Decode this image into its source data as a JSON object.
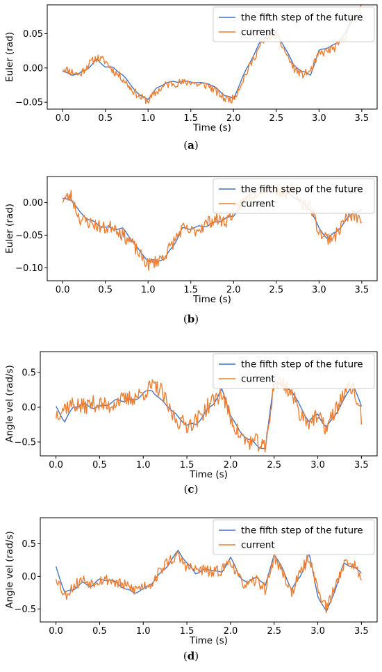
{
  "colors": {
    "predicted": "#4472c4",
    "current": "#ed7d31"
  },
  "chart_data": [
    {
      "type": "line",
      "caption_letter": "a",
      "xlabel": "Time (s)",
      "ylabel": "Euler (rad)",
      "xlim": [
        -0.18,
        3.68
      ],
      "ylim": [
        -0.06,
        0.092
      ],
      "xticks": [
        0.0,
        0.5,
        1.0,
        1.5,
        2.0,
        2.5,
        3.0,
        3.5
      ],
      "xtick_labels": [
        "0.0",
        "0.5",
        "1.0",
        "1.5",
        "2.0",
        "2.5",
        "3.0",
        "3.5"
      ],
      "yticks": [
        -0.05,
        0.0,
        0.05
      ],
      "ytick_labels": [
        "−0.05",
        "0.00",
        "0.05"
      ],
      "legend_position": "top-right",
      "noise": 0.006,
      "seed": 11,
      "series": [
        {
          "name": "the fifth step of the future",
          "x": [
            0.0,
            0.1,
            0.2,
            0.3,
            0.4,
            0.5,
            0.6,
            0.7,
            0.8,
            0.9,
            1.0,
            1.1,
            1.2,
            1.3,
            1.4,
            1.5,
            1.6,
            1.7,
            1.8,
            1.9,
            2.0,
            2.1,
            2.2,
            2.3,
            2.4,
            2.5,
            2.6,
            2.7,
            2.8,
            2.9,
            3.0,
            3.1,
            3.2,
            3.3,
            3.4,
            3.5
          ],
          "y": [
            -0.005,
            -0.01,
            -0.008,
            0.0,
            0.012,
            0.002,
            0.0,
            -0.01,
            -0.025,
            -0.04,
            -0.045,
            -0.03,
            -0.022,
            -0.02,
            -0.02,
            -0.02,
            -0.022,
            -0.022,
            -0.03,
            -0.04,
            -0.045,
            -0.015,
            0.01,
            0.035,
            0.05,
            0.052,
            0.03,
            0.005,
            -0.005,
            -0.01,
            0.025,
            0.03,
            0.035,
            0.05,
            0.07,
            0.08
          ]
        },
        {
          "name": "current",
          "x": [
            0.0,
            0.1,
            0.2,
            0.3,
            0.4,
            0.5,
            0.6,
            0.7,
            0.8,
            0.9,
            1.0,
            1.1,
            1.2,
            1.3,
            1.4,
            1.5,
            1.6,
            1.7,
            1.8,
            1.9,
            2.0,
            2.1,
            2.2,
            2.3,
            2.4,
            2.5,
            2.6,
            2.7,
            2.8,
            2.9,
            3.0,
            3.1,
            3.2,
            3.3,
            3.4,
            3.5
          ],
          "y": [
            0.0,
            -0.005,
            -0.01,
            0.005,
            0.015,
            0.01,
            -0.005,
            -0.015,
            -0.03,
            -0.042,
            -0.048,
            -0.035,
            -0.025,
            -0.022,
            -0.022,
            -0.02,
            -0.025,
            -0.025,
            -0.035,
            -0.045,
            -0.045,
            -0.02,
            0.005,
            0.03,
            0.045,
            0.048,
            0.025,
            0.0,
            -0.01,
            -0.005,
            0.02,
            0.025,
            0.03,
            0.045,
            0.075,
            0.09
          ]
        }
      ]
    },
    {
      "type": "line",
      "caption_letter": "b",
      "xlabel": "Time (s)",
      "ylabel": "Euler (rad)",
      "xlim": [
        -0.18,
        3.68
      ],
      "ylim": [
        -0.12,
        0.04
      ],
      "xticks": [
        0.0,
        0.5,
        1.0,
        1.5,
        2.0,
        2.5,
        3.0,
        3.5
      ],
      "xtick_labels": [
        "0.0",
        "0.5",
        "1.0",
        "1.5",
        "2.0",
        "2.5",
        "3.0",
        "3.5"
      ],
      "yticks": [
        -0.1,
        -0.05,
        0.0
      ],
      "ytick_labels": [
        "−0.10",
        "−0.05",
        "0.00"
      ],
      "legend_position": "top-right",
      "noise": 0.01,
      "seed": 23,
      "series": [
        {
          "name": "the fifth step of the future",
          "x": [
            0.0,
            0.1,
            0.2,
            0.3,
            0.4,
            0.5,
            0.6,
            0.7,
            0.8,
            0.9,
            1.0,
            1.1,
            1.2,
            1.3,
            1.4,
            1.5,
            1.6,
            1.7,
            1.8,
            1.9,
            2.0,
            2.1,
            2.2,
            2.3,
            2.4,
            2.5,
            2.6,
            2.7,
            2.8,
            2.9,
            3.0,
            3.1,
            3.2,
            3.3,
            3.4,
            3.5
          ],
          "y": [
            0.005,
            0.005,
            -0.015,
            -0.025,
            -0.033,
            -0.038,
            -0.04,
            -0.04,
            -0.055,
            -0.075,
            -0.088,
            -0.09,
            -0.085,
            -0.065,
            -0.04,
            -0.04,
            -0.037,
            -0.035,
            -0.03,
            -0.025,
            -0.02,
            0.0,
            0.015,
            0.02,
            0.02,
            0.018,
            0.015,
            0.01,
            0.0,
            -0.01,
            -0.04,
            -0.055,
            -0.045,
            -0.03,
            -0.015,
            -0.012
          ]
        },
        {
          "name": "current",
          "x": [
            0.0,
            0.1,
            0.2,
            0.3,
            0.4,
            0.5,
            0.6,
            0.7,
            0.8,
            0.9,
            1.0,
            1.1,
            1.2,
            1.3,
            1.4,
            1.5,
            1.6,
            1.7,
            1.8,
            1.9,
            2.0,
            2.1,
            2.2,
            2.3,
            2.4,
            2.5,
            2.6,
            2.7,
            2.8,
            2.9,
            3.0,
            3.1,
            3.2,
            3.3,
            3.4,
            3.5
          ],
          "y": [
            0.005,
            0.01,
            -0.025,
            -0.03,
            -0.035,
            -0.04,
            -0.035,
            -0.05,
            -0.06,
            -0.08,
            -0.095,
            -0.09,
            -0.08,
            -0.06,
            -0.04,
            -0.045,
            -0.04,
            -0.03,
            -0.025,
            -0.03,
            -0.015,
            0.0,
            0.01,
            0.02,
            0.025,
            0.02,
            0.015,
            0.02,
            0.0,
            -0.005,
            -0.045,
            -0.055,
            -0.05,
            -0.025,
            -0.02,
            -0.025
          ]
        }
      ]
    },
    {
      "type": "line",
      "caption_letter": "c",
      "xlabel": "Time (s)",
      "ylabel": "Angle vel (rad/s)",
      "xlim": [
        -0.18,
        3.68
      ],
      "ylim": [
        -0.7,
        0.8
      ],
      "xticks": [
        0.0,
        0.5,
        1.0,
        1.5,
        2.0,
        2.5,
        3.0,
        3.5
      ],
      "xtick_labels": [
        "0.0",
        "0.5",
        "1.0",
        "1.5",
        "2.0",
        "2.5",
        "3.0",
        "3.5"
      ],
      "yticks": [
        -0.5,
        0.0,
        0.5
      ],
      "ytick_labels": [
        "−0.5",
        "0.0",
        "0.5"
      ],
      "legend_position": "top-right",
      "noise": 0.12,
      "seed": 37,
      "series": [
        {
          "name": "the fifth step of the future",
          "x": [
            0.0,
            0.1,
            0.2,
            0.3,
            0.4,
            0.5,
            0.6,
            0.7,
            0.8,
            0.9,
            1.0,
            1.1,
            1.2,
            1.3,
            1.4,
            1.5,
            1.6,
            1.7,
            1.8,
            1.9,
            2.0,
            2.1,
            2.2,
            2.3,
            2.4,
            2.5,
            2.6,
            2.7,
            2.8,
            2.9,
            3.0,
            3.1,
            3.2,
            3.3,
            3.4,
            3.5
          ],
          "y": [
            0.0,
            -0.2,
            0.0,
            0.05,
            0.0,
            0.0,
            0.05,
            0.1,
            0.1,
            0.1,
            0.2,
            0.25,
            0.1,
            0.0,
            -0.15,
            -0.25,
            -0.25,
            -0.1,
            0.05,
            0.25,
            -0.1,
            -0.35,
            -0.45,
            -0.55,
            -0.6,
            0.4,
            0.3,
            0.25,
            0.0,
            -0.2,
            -0.1,
            -0.3,
            -0.1,
            0.1,
            0.35,
            0.0
          ]
        },
        {
          "name": "current",
          "x": [
            0.0,
            0.1,
            0.2,
            0.3,
            0.4,
            0.5,
            0.6,
            0.7,
            0.8,
            0.9,
            1.0,
            1.1,
            1.2,
            1.3,
            1.4,
            1.5,
            1.6,
            1.7,
            1.8,
            1.9,
            2.0,
            2.1,
            2.2,
            2.3,
            2.4,
            2.5,
            2.6,
            2.7,
            2.8,
            2.9,
            3.0,
            3.1,
            3.2,
            3.3,
            3.4,
            3.5
          ],
          "y": [
            -0.1,
            0.0,
            0.05,
            0.0,
            0.05,
            0.05,
            0.0,
            0.1,
            0.1,
            0.15,
            0.2,
            0.3,
            0.25,
            -0.05,
            -0.2,
            -0.25,
            -0.2,
            -0.05,
            0.1,
            0.2,
            -0.15,
            -0.4,
            -0.5,
            -0.5,
            -0.6,
            0.35,
            0.35,
            0.2,
            -0.1,
            -0.2,
            -0.15,
            -0.3,
            -0.05,
            0.2,
            0.3,
            -0.15
          ]
        }
      ]
    },
    {
      "type": "line",
      "caption_letter": "d",
      "xlabel": "Time (s)",
      "ylabel": "Angle vel (rad/s)",
      "xlim": [
        -0.18,
        3.68
      ],
      "ylim": [
        -0.7,
        0.9
      ],
      "xticks": [
        0.0,
        0.5,
        1.0,
        1.5,
        2.0,
        2.5,
        3.0,
        3.5
      ],
      "xtick_labels": [
        "0.0",
        "0.5",
        "1.0",
        "1.5",
        "2.0",
        "2.5",
        "3.0",
        "3.5"
      ],
      "yticks": [
        -0.5,
        0.0,
        0.5
      ],
      "ytick_labels": [
        "−0.5",
        "0.0",
        "0.5"
      ],
      "legend_position": "top-right",
      "noise": 0.09,
      "seed": 53,
      "series": [
        {
          "name": "the fifth step of the future",
          "x": [
            0.0,
            0.1,
            0.2,
            0.3,
            0.4,
            0.5,
            0.6,
            0.7,
            0.8,
            0.9,
            1.0,
            1.1,
            1.2,
            1.3,
            1.4,
            1.5,
            1.6,
            1.7,
            1.8,
            1.9,
            2.0,
            2.1,
            2.2,
            2.3,
            2.4,
            2.5,
            2.6,
            2.7,
            2.8,
            2.9,
            3.0,
            3.1,
            3.2,
            3.3,
            3.4,
            3.5
          ],
          "y": [
            0.15,
            -0.25,
            -0.2,
            -0.1,
            -0.15,
            -0.05,
            -0.05,
            -0.1,
            -0.2,
            -0.25,
            -0.2,
            -0.1,
            0.05,
            0.2,
            0.4,
            0.2,
            0.05,
            0.1,
            0.1,
            0.05,
            0.3,
            0.0,
            -0.1,
            0.0,
            -0.15,
            0.35,
            0.1,
            -0.2,
            0.0,
            0.35,
            -0.3,
            -0.55,
            -0.2,
            0.2,
            0.15,
            0.05
          ]
        },
        {
          "name": "current",
          "x": [
            0.0,
            0.1,
            0.2,
            0.3,
            0.4,
            0.5,
            0.6,
            0.7,
            0.8,
            0.9,
            1.0,
            1.1,
            1.2,
            1.3,
            1.4,
            1.5,
            1.6,
            1.7,
            1.8,
            1.9,
            2.0,
            2.1,
            2.2,
            2.3,
            2.4,
            2.5,
            2.6,
            2.7,
            2.8,
            2.9,
            3.0,
            3.1,
            3.2,
            3.3,
            3.4,
            3.5
          ],
          "y": [
            0.0,
            -0.3,
            -0.15,
            -0.05,
            -0.1,
            -0.05,
            -0.05,
            -0.1,
            -0.15,
            -0.2,
            -0.15,
            -0.1,
            0.1,
            0.25,
            0.3,
            0.15,
            0.1,
            0.1,
            0.05,
            0.1,
            0.25,
            -0.05,
            -0.15,
            -0.05,
            -0.2,
            0.3,
            0.05,
            -0.25,
            0.05,
            0.3,
            -0.2,
            -0.5,
            -0.15,
            0.2,
            0.2,
            0.0
          ]
        }
      ]
    }
  ]
}
